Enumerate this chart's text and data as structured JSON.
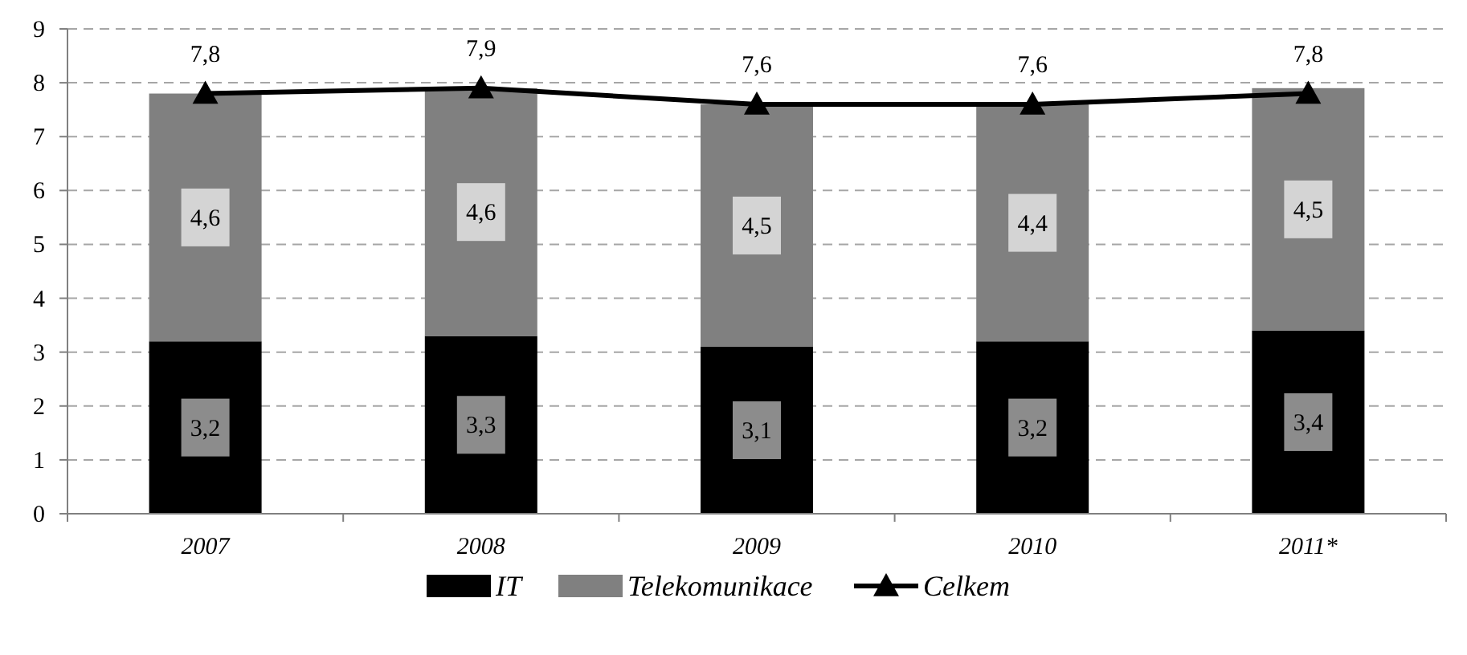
{
  "chart_data": {
    "type": "bar",
    "stacked": true,
    "categories": [
      "2007",
      "2008",
      "2009",
      "2010",
      "2011*"
    ],
    "series": [
      {
        "name": "IT",
        "color": "#000000",
        "values": [
          3.2,
          3.3,
          3.1,
          3.2,
          3.4
        ],
        "value_labels": [
          "3,2",
          "3,3",
          "3,1",
          "3,2",
          "3,4"
        ]
      },
      {
        "name": "Telekomunikace",
        "color": "#808080",
        "values": [
          4.6,
          4.6,
          4.5,
          4.4,
          4.5
        ],
        "value_labels": [
          "4,6",
          "4,6",
          "4,5",
          "4,4",
          "4,5"
        ]
      },
      {
        "name": "Celkem",
        "type": "line",
        "color": "#000000",
        "marker": "triangle",
        "values": [
          7.8,
          7.9,
          7.6,
          7.6,
          7.8
        ],
        "value_labels": [
          "7,8",
          "7,9",
          "7,6",
          "7,6",
          "7,8"
        ]
      }
    ],
    "ylim": [
      0,
      9
    ],
    "yticks": [
      0,
      1,
      2,
      3,
      4,
      5,
      6,
      7,
      8,
      9
    ],
    "grid": "y",
    "legend": "bottom"
  }
}
